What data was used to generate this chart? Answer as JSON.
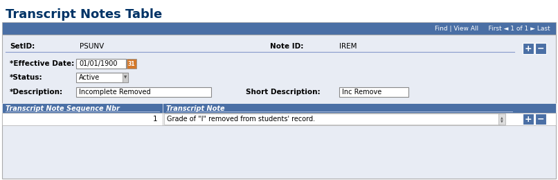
{
  "title": "Transcript Notes Table",
  "title_color": "#003366",
  "title_fontsize": 13,
  "bg_color": "#f0f0f0",
  "page_bg": "#ffffff",
  "nav_bar_color": "#4a6fa5",
  "nav_bar_height": 0.13,
  "nav_text": "Find | View All     First ◄ 1 of 1 ► Last",
  "nav_text_color": "#ffffff",
  "setid_label": "SetID:",
  "setid_value": "PSUNV",
  "noteid_label": "Note ID:",
  "noteid_value": "IREM",
  "effdate_label": "*Effective Date:",
  "effdate_value": "01/01/1900",
  "status_label": "*Status:",
  "status_value": "Active",
  "desc_label": "*Description:",
  "desc_value": "Incomplete Removed",
  "shortdesc_label": "Short Description:",
  "shortdesc_value": "Inc Remove",
  "table_header_color": "#4a6fa5",
  "table_header_text_color": "#ffffff",
  "col1_header": "Transcript Note Sequence Nbr",
  "col2_header": "Transcript Note",
  "row1_seq": "1",
  "row1_note": "Grade of \"I\" removed from students' record.",
  "separator_color": "#8899cc",
  "field_border_color": "#aaaaaa",
  "label_color": "#000000",
  "value_color": "#000000",
  "plus_minus_color": "#4a6fa5",
  "outer_border_color": "#aaaaaa"
}
